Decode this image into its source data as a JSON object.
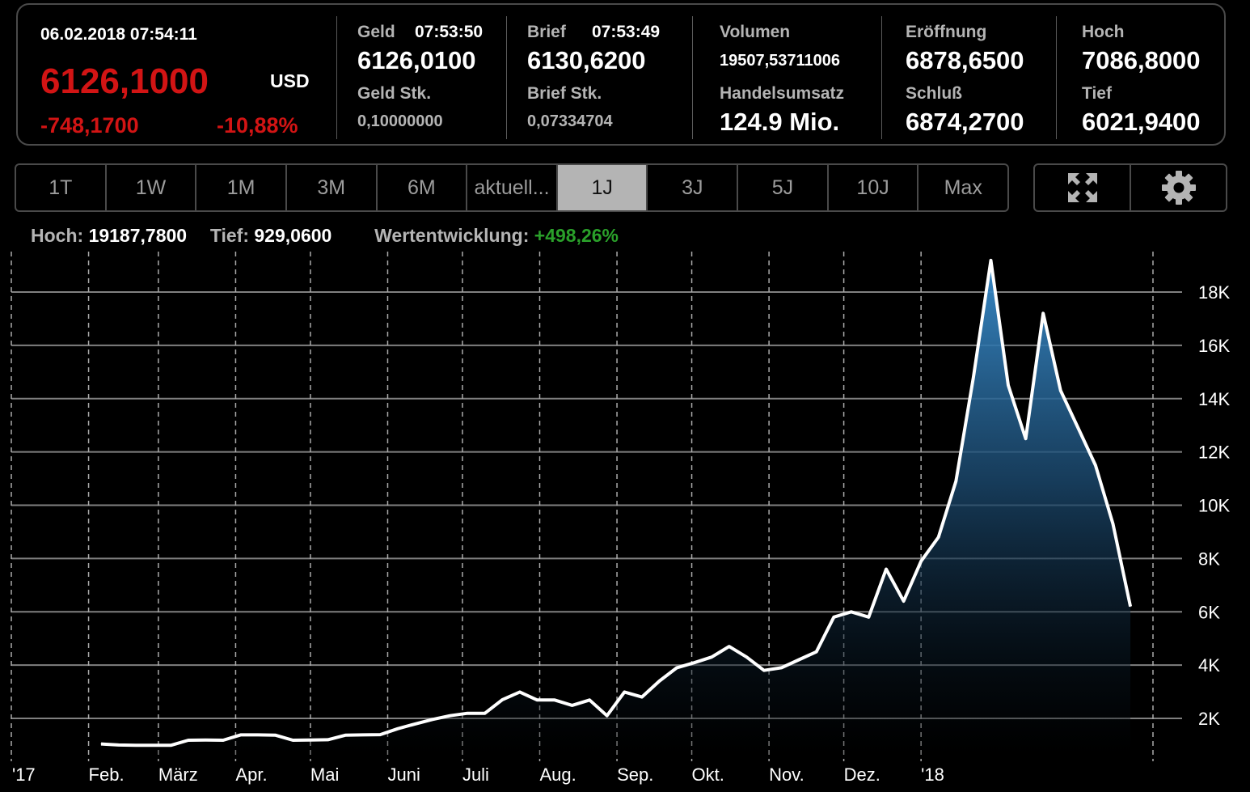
{
  "quote": {
    "datetime": "06.02.2018 07:54:11",
    "price": "6126,1000",
    "currency": "USD",
    "change_abs": "-748,1700",
    "change_pct": "-10,88%",
    "geld_label": "Geld",
    "geld_time": "07:53:50",
    "geld_value": "6126,0100",
    "geld_stk_label": "Geld Stk.",
    "geld_stk_value": "0,10000000",
    "brief_label": "Brief",
    "brief_time": "07:53:49",
    "brief_value": "6130,6200",
    "brief_stk_label": "Brief Stk.",
    "brief_stk_value": "0,07334704",
    "volumen_label": "Volumen",
    "volumen_value": "19507,53711006",
    "handelsumsatz_label": "Handelsumsatz",
    "handelsumsatz_value": "124.9 Mio.",
    "eroeffnung_label": "Eröffnung",
    "eroeffnung_value": "6878,6500",
    "schluss_label": "Schluß",
    "schluss_value": "6874,2700",
    "hoch_label": "Hoch",
    "hoch_value": "7086,8000",
    "tief_label": "Tief",
    "tief_value": "6021,9400"
  },
  "ranges": [
    {
      "label": "1T",
      "active": false
    },
    {
      "label": "1W",
      "active": false
    },
    {
      "label": "1M",
      "active": false
    },
    {
      "label": "3M",
      "active": false
    },
    {
      "label": "6M",
      "active": false
    },
    {
      "label": "aktuell...",
      "active": false
    },
    {
      "label": "1J",
      "active": true
    },
    {
      "label": "3J",
      "active": false
    },
    {
      "label": "5J",
      "active": false
    },
    {
      "label": "10J",
      "active": false
    },
    {
      "label": "Max",
      "active": false
    }
  ],
  "tools": {
    "fullscreen_icon": "expand-arrows-icon",
    "settings_icon": "gear-icon"
  },
  "stats": {
    "hoch_label": "Hoch:",
    "hoch_value": "19187,7800",
    "tief_label": "Tief:",
    "tief_value": "929,0600",
    "perf_label": "Wertentwicklung:",
    "perf_value": "+498,26%"
  },
  "colors": {
    "negative": "#d21414",
    "positive": "#2aa02a",
    "line": "#ffffff",
    "area_top": "#3a8fd0",
    "grid": "#808080"
  },
  "chart_data": {
    "type": "area",
    "y_ticks": [
      "2K",
      "4K",
      "6K",
      "8K",
      "10K",
      "12K",
      "14K",
      "16K",
      "18K"
    ],
    "y_tick_values": [
      2000,
      4000,
      6000,
      8000,
      10000,
      12000,
      14000,
      16000,
      18000
    ],
    "x_ticks": [
      "'17",
      "Feb.",
      "März",
      "Apr.",
      "Mai",
      "Juni",
      "Juli",
      "Aug.",
      "Sep.",
      "Okt.",
      "Nov.",
      "Dez.",
      "'18"
    ],
    "x_tick_dates": [
      "2017-01-01",
      "2017-02-01",
      "2017-03-01",
      "2017-04-01",
      "2017-05-01",
      "2017-06-01",
      "2017-07-01",
      "2017-08-01",
      "2017-09-01",
      "2017-10-01",
      "2017-11-01",
      "2017-12-01",
      "2018-01-01"
    ],
    "ylim": [
      1000,
      19500
    ],
    "grid": true,
    "series": [
      {
        "values": [
          [
            "2017-02-06",
            1040
          ],
          [
            "2017-02-13",
            1000
          ],
          [
            "2017-02-20",
            990
          ],
          [
            "2017-02-27",
            990
          ],
          [
            "2017-03-06",
            990
          ],
          [
            "2017-03-13",
            1180
          ],
          [
            "2017-03-20",
            1190
          ],
          [
            "2017-03-27",
            1180
          ],
          [
            "2017-04-03",
            1380
          ],
          [
            "2017-04-10",
            1380
          ],
          [
            "2017-04-17",
            1370
          ],
          [
            "2017-04-24",
            1180
          ],
          [
            "2017-05-01",
            1190
          ],
          [
            "2017-05-08",
            1200
          ],
          [
            "2017-05-15",
            1370
          ],
          [
            "2017-05-22",
            1380
          ],
          [
            "2017-05-29",
            1390
          ],
          [
            "2017-06-05",
            1610
          ],
          [
            "2017-06-12",
            1790
          ],
          [
            "2017-06-19",
            1960
          ],
          [
            "2017-06-26",
            2100
          ],
          [
            "2017-07-03",
            2190
          ],
          [
            "2017-07-10",
            2190
          ],
          [
            "2017-07-17",
            2700
          ],
          [
            "2017-07-24",
            2990
          ],
          [
            "2017-07-31",
            2690
          ],
          [
            "2017-08-07",
            2690
          ],
          [
            "2017-08-14",
            2490
          ],
          [
            "2017-08-21",
            2690
          ],
          [
            "2017-08-28",
            2100
          ],
          [
            "2017-09-04",
            2990
          ],
          [
            "2017-09-11",
            2800
          ],
          [
            "2017-09-18",
            3400
          ],
          [
            "2017-09-25",
            3900
          ],
          [
            "2017-10-02",
            4090
          ],
          [
            "2017-10-09",
            4300
          ],
          [
            "2017-10-16",
            4700
          ],
          [
            "2017-10-23",
            4300
          ],
          [
            "2017-10-30",
            3800
          ],
          [
            "2017-11-06",
            3900
          ],
          [
            "2017-11-13",
            4200
          ],
          [
            "2017-11-20",
            4500
          ],
          [
            "2017-11-27",
            5800
          ],
          [
            "2017-12-04",
            6000
          ],
          [
            "2017-12-11",
            5800
          ],
          [
            "2017-12-18",
            7600
          ],
          [
            "2017-12-25",
            6400
          ],
          [
            "2018-01-01",
            7900
          ],
          [
            "2018-01-08",
            8800
          ],
          [
            "2018-01-15",
            10900
          ],
          [
            "2018-01-22",
            14800
          ],
          [
            "2018-01-29",
            19187.78
          ],
          [
            "2018-02-05",
            14500
          ],
          [
            "2018-02-12",
            12500
          ],
          [
            "2018-02-19",
            17200
          ],
          [
            "2018-02-26",
            14300
          ],
          [
            "2018-03-05",
            12900
          ],
          [
            "2018-03-12",
            11500
          ],
          [
            "2018-03-19",
            9300
          ],
          [
            "2018-03-26",
            6200
          ]
        ]
      }
    ]
  }
}
